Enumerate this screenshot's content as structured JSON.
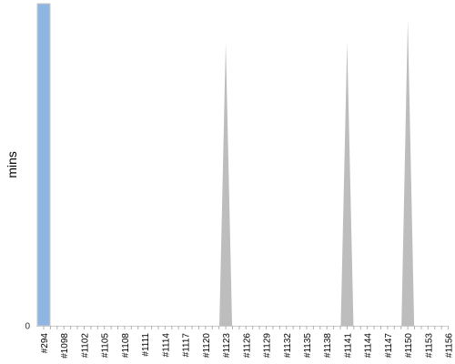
{
  "chart_data": {
    "type": "area",
    "ylabel": "mins",
    "xlabel": "",
    "title": "",
    "ylim": [
      0,
      100
    ],
    "y_ticks": [
      "0"
    ],
    "grid": false,
    "legend": "none",
    "categories": [
      "#294",
      "#1098",
      "#1102",
      "#1105",
      "#1108",
      "#1111",
      "#1114",
      "#1117",
      "#1120",
      "#1123",
      "#1126",
      "#1129",
      "#1132",
      "#1135",
      "#1138",
      "#1141",
      "#1144",
      "#1147",
      "#1150",
      "#1153",
      "#1156"
    ],
    "series": [
      {
        "color": "#bdbdbd",
        "points": [
          {
            "x": "#1123",
            "y": 88
          },
          {
            "x": "#1141",
            "y": 88
          },
          {
            "x": "#1150",
            "y": 95
          }
        ]
      }
    ],
    "highlight_bar": {
      "category": "#294",
      "y": 100,
      "color": "#8fb5e3"
    }
  }
}
